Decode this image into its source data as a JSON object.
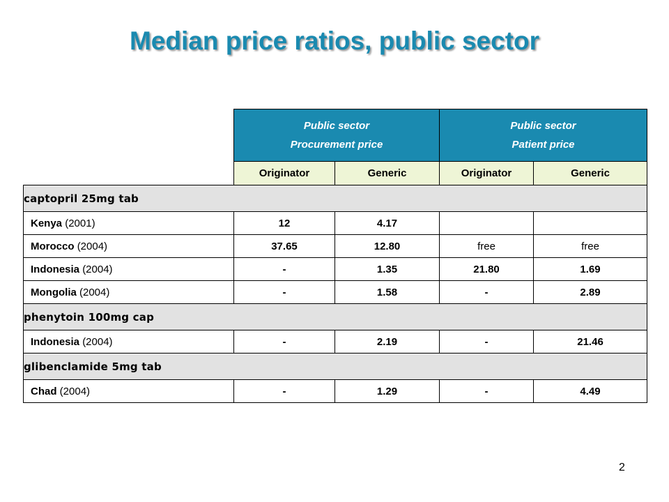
{
  "title": "Median price ratios, public sector",
  "page_number": "2",
  "header": {
    "groups": [
      {
        "line1": "Public sector",
        "line2": "Procurement price"
      },
      {
        "line1": "Public sector",
        "line2": "Patient price"
      }
    ],
    "subheaders": [
      "Originator",
      "Generic",
      "Originator",
      "Generic"
    ]
  },
  "sections": [
    {
      "drug": "captopril 25mg tab",
      "rows": [
        {
          "country": "Kenya",
          "year": "(2001)",
          "values": [
            "12",
            "4.17",
            "",
            ""
          ]
        },
        {
          "country": "Morocco",
          "year": "(2004)",
          "values": [
            "37.65",
            "12.80",
            "free",
            "free"
          ]
        },
        {
          "country": "Indonesia",
          "year": "(2004)",
          "values": [
            "-",
            "1.35",
            "21.80",
            "1.69"
          ]
        },
        {
          "country": "Mongolia",
          "year": "(2004)",
          "values": [
            "-",
            "1.58",
            "-",
            "2.89"
          ]
        }
      ]
    },
    {
      "drug": "phenytoin 100mg cap",
      "rows": [
        {
          "country": "Indonesia",
          "year": "(2004)",
          "values": [
            "-",
            "2.19",
            "-",
            "21.46"
          ]
        }
      ]
    },
    {
      "drug": "glibenclamide 5mg tab",
      "rows": [
        {
          "country": "Chad",
          "year": "(2004)",
          "values": [
            "-",
            "1.29",
            "-",
            "4.49"
          ]
        }
      ]
    }
  ],
  "colors": {
    "accent": "#1a8ab0",
    "subheader_bg": "#eef5d6",
    "section_bg": "#e2e2e2"
  }
}
